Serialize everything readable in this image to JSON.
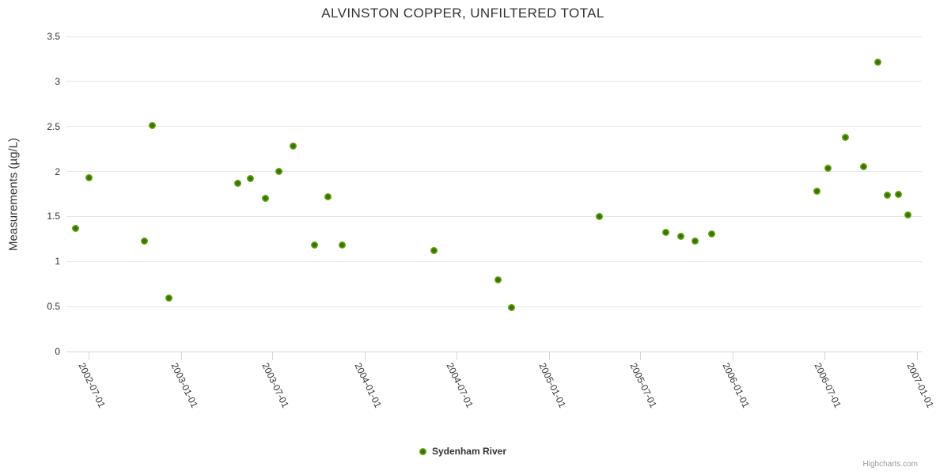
{
  "title": "ALVINSTON COPPER, UNFILTERED TOTAL",
  "legend": {
    "label": "Sydenham River",
    "marker_icon": "circle-marker-icon"
  },
  "credits": {
    "text": "Highcharts.com"
  },
  "colors": {
    "series_green_outer": "#74b822",
    "series_green_inner": "#3d7004",
    "gridline": "#e6e6e6",
    "axis_line": "#ccd6eb",
    "text": "#333333",
    "credits_text": "#999999"
  },
  "chart_data": {
    "type": "scatter",
    "title": "ALVINSTON COPPER, UNFILTERED TOTAL",
    "legend_position": "bottom-center",
    "grid": "horizontal-only",
    "yaxis": {
      "title": "Measurements (µg/L)",
      "min": 0,
      "max": 3.5,
      "tick_interval": 0.5,
      "tick_labels": [
        "0",
        "0.5",
        "1",
        "1.5",
        "2",
        "2.5",
        "3",
        "3.5"
      ]
    },
    "xaxis": {
      "type": "datetime",
      "min": "2002-05-18",
      "max": "2007-01-11",
      "tick_labels": [
        "2002-07-01",
        "2003-01-01",
        "2003-07-01",
        "2004-01-01",
        "2004-07-01",
        "2005-01-01",
        "2005-07-01",
        "2006-01-01",
        "2006-07-01",
        "2007-01-01"
      ]
    },
    "series": [
      {
        "name": "Sydenham River",
        "color": "#74b822",
        "points": [
          {
            "date": "2002-06-05",
            "value": 1.37
          },
          {
            "date": "2002-07-02",
            "value": 1.93
          },
          {
            "date": "2002-10-20",
            "value": 1.23
          },
          {
            "date": "2002-11-04",
            "value": 2.51
          },
          {
            "date": "2002-12-07",
            "value": 0.59
          },
          {
            "date": "2003-04-23",
            "value": 1.87
          },
          {
            "date": "2003-05-19",
            "value": 1.92
          },
          {
            "date": "2003-06-17",
            "value": 1.7
          },
          {
            "date": "2003-07-14",
            "value": 2.0
          },
          {
            "date": "2003-08-12",
            "value": 2.28
          },
          {
            "date": "2003-09-23",
            "value": 1.18
          },
          {
            "date": "2003-10-20",
            "value": 1.72
          },
          {
            "date": "2003-11-17",
            "value": 1.18
          },
          {
            "date": "2004-05-17",
            "value": 1.12
          },
          {
            "date": "2004-09-21",
            "value": 0.8
          },
          {
            "date": "2004-10-18",
            "value": 0.49
          },
          {
            "date": "2005-04-10",
            "value": 1.5
          },
          {
            "date": "2005-08-21",
            "value": 1.32
          },
          {
            "date": "2005-09-19",
            "value": 1.28
          },
          {
            "date": "2005-10-17",
            "value": 1.23
          },
          {
            "date": "2005-11-20",
            "value": 1.31
          },
          {
            "date": "2006-06-17",
            "value": 1.78
          },
          {
            "date": "2006-07-09",
            "value": 2.04
          },
          {
            "date": "2006-08-13",
            "value": 2.38
          },
          {
            "date": "2006-09-18",
            "value": 2.05
          },
          {
            "date": "2006-10-15",
            "value": 3.21
          },
          {
            "date": "2006-11-03",
            "value": 1.74
          },
          {
            "date": "2006-11-26",
            "value": 1.75
          },
          {
            "date": "2006-12-15",
            "value": 1.52
          }
        ]
      }
    ]
  }
}
